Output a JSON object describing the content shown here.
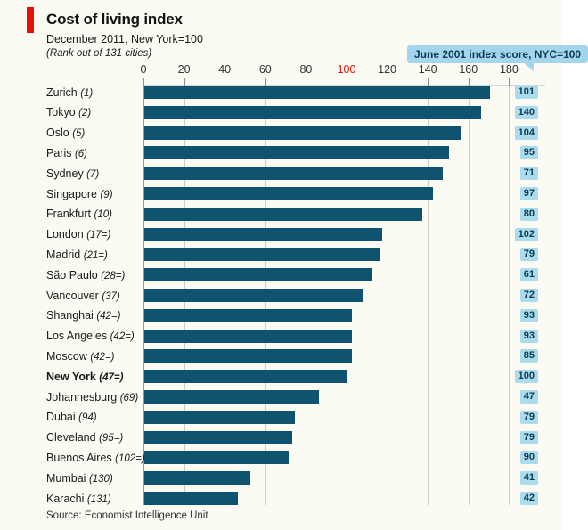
{
  "header": {
    "title": "Cost of living index",
    "subtitle": "December 2011, New York=100",
    "note": "(Rank out of 131 cities)",
    "callout": "June 2001 index score, NYC=100"
  },
  "source": "Source: Economist Intelligence Unit",
  "colors": {
    "background": "#fbfaf3",
    "bar": "#10536e",
    "accent_red": "#e3120b",
    "badge_bg": "#aadcee",
    "badge_text": "#0c3a53",
    "callout_bg": "#a3d5ec",
    "gridline": "#cfcfc6"
  },
  "chart_data": {
    "type": "bar",
    "orientation": "horizontal",
    "title": "Cost of living index",
    "subtitle": "December 2011, New York=100",
    "axis": {
      "position": "top",
      "min": 0,
      "max": 190,
      "ticks": [
        0,
        20,
        40,
        60,
        80,
        100,
        120,
        140,
        160,
        180
      ],
      "highlight_tick": 100,
      "grid": true,
      "reference_line": 100
    },
    "categories": [
      "Zurich",
      "Tokyo",
      "Oslo",
      "Paris",
      "Sydney",
      "Singapore",
      "Frankfurt",
      "London",
      "Madrid",
      "São Paulo",
      "Vancouver",
      "Shanghai",
      "Los Angeles",
      "Moscow",
      "New York",
      "Johannesburg",
      "Dubai",
      "Cleveland",
      "Buenos Aires",
      "Mumbai",
      "Karachi"
    ],
    "ranks": [
      "(1)",
      "(2)",
      "(5)",
      "(6)",
      "(7)",
      "(9)",
      "(10)",
      "(17=)",
      "(21=)",
      "(28=)",
      "(37)",
      "(42=)",
      "(42=)",
      "(42=)",
      "(47=)",
      "(69)",
      "(94)",
      "(95=)",
      "(102=)",
      "(130)",
      "(131)"
    ],
    "series": [
      {
        "name": "December 2011 index, New York=100",
        "display": "bars",
        "values": [
          170,
          166,
          156,
          150,
          147,
          142,
          137,
          117,
          116,
          112,
          108,
          102,
          102,
          102,
          100,
          86,
          74,
          73,
          71,
          52,
          46
        ]
      },
      {
        "name": "June 2001 index score, NYC=100",
        "display": "badges",
        "values": [
          101,
          140,
          104,
          95,
          71,
          97,
          80,
          102,
          79,
          61,
          72,
          93,
          93,
          85,
          100,
          47,
          79,
          79,
          90,
          41,
          42
        ]
      }
    ],
    "emphasized_category": "New York"
  }
}
